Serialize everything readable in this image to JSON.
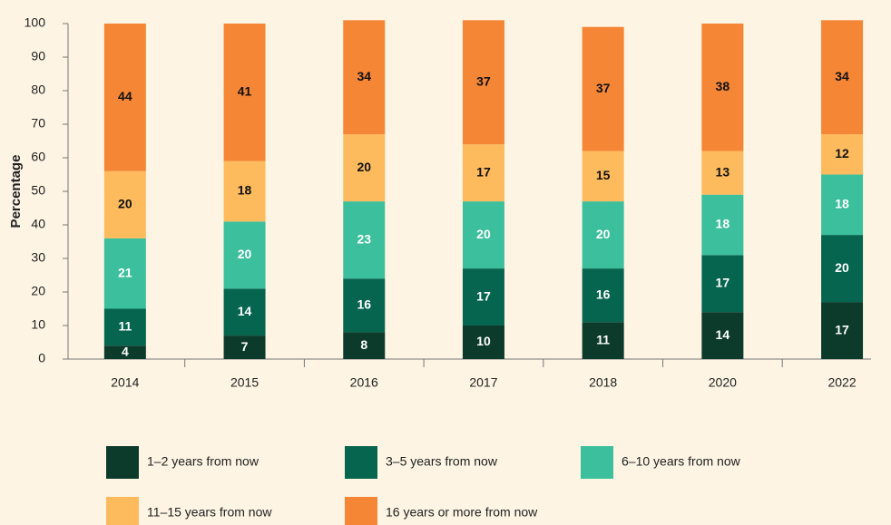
{
  "chart_data": {
    "type": "stacked_bar",
    "y_label": "Percentage",
    "categories": [
      "2014",
      "2015",
      "2016",
      "2017",
      "2018",
      "2020",
      "2022"
    ],
    "series": [
      {
        "name": "1–2 years from now",
        "color": "#0c3b2b",
        "values": [
          4,
          7,
          8,
          10,
          11,
          14,
          17
        ]
      },
      {
        "name": "3–5 years from now",
        "color": "#06654f",
        "values": [
          11,
          14,
          16,
          17,
          16,
          17,
          20
        ]
      },
      {
        "name": "6–10 years from now",
        "color": "#3cbf9c",
        "values": [
          21,
          20,
          23,
          20,
          20,
          18,
          18
        ]
      },
      {
        "name": "11–15 years from now",
        "color": "#fdbb5e",
        "values": [
          20,
          18,
          20,
          17,
          15,
          13,
          12
        ]
      },
      {
        "name": "16 years or more from now",
        "color": "#f58636",
        "values": [
          44,
          41,
          34,
          37,
          37,
          38,
          34
        ]
      }
    ],
    "ylim": [
      0,
      100
    ],
    "yticks": [
      0,
      10,
      20,
      30,
      40,
      50,
      60,
      70,
      80,
      90,
      100
    ]
  }
}
